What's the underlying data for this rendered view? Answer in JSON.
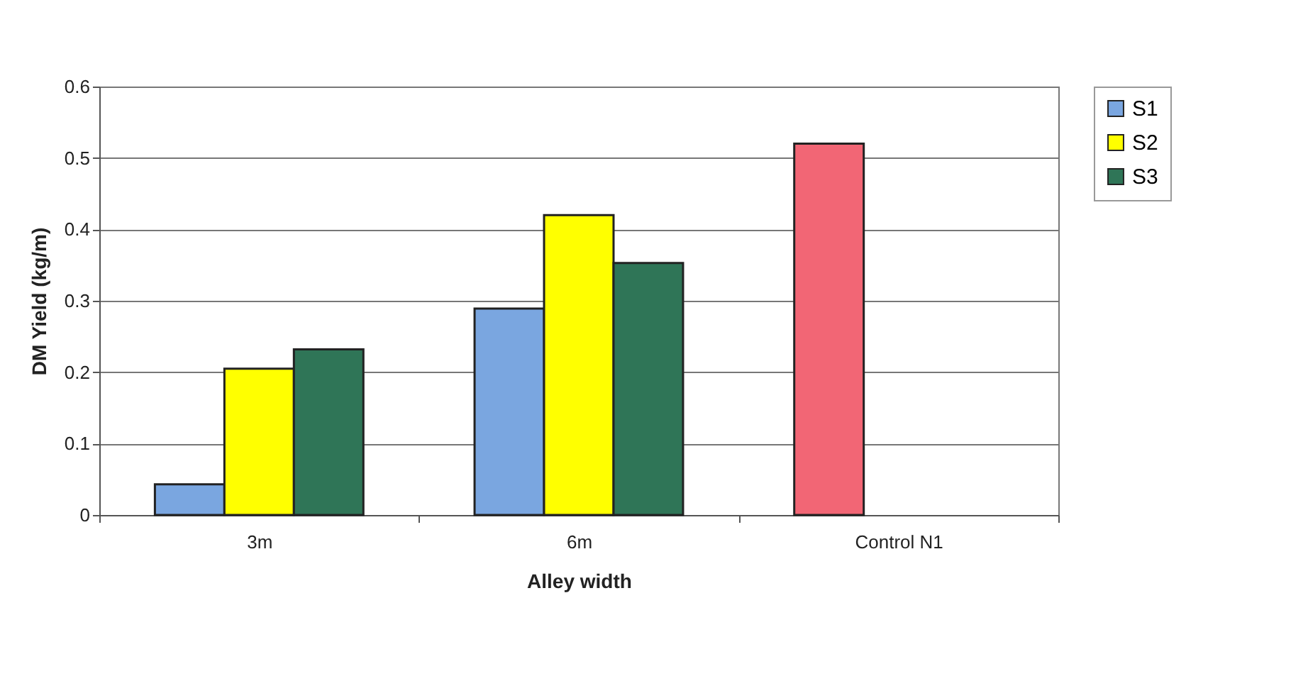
{
  "chart_data": {
    "type": "bar",
    "xlabel": "Alley width",
    "ylabel": "DM Yield (kg/m)",
    "categories": [
      "3m",
      "6m",
      "Control N1"
    ],
    "series": [
      {
        "name": "S1",
        "color": "#7aa6e0",
        "colors": [
          "#7aa6e0",
          "#7aa6e0",
          "#f26675"
        ],
        "values": [
          0.043,
          0.289,
          0.52
        ]
      },
      {
        "name": "S2",
        "color": "#ffff00",
        "values": [
          0.205,
          0.42,
          null
        ]
      },
      {
        "name": "S3",
        "color": "#2f7557",
        "values": [
          0.232,
          0.353,
          null
        ]
      }
    ],
    "ylim": [
      0,
      0.6
    ],
    "yticks": [
      0,
      0.1,
      0.2,
      0.3,
      0.4,
      0.5,
      0.6
    ],
    "grid": "y",
    "legend": "right"
  }
}
